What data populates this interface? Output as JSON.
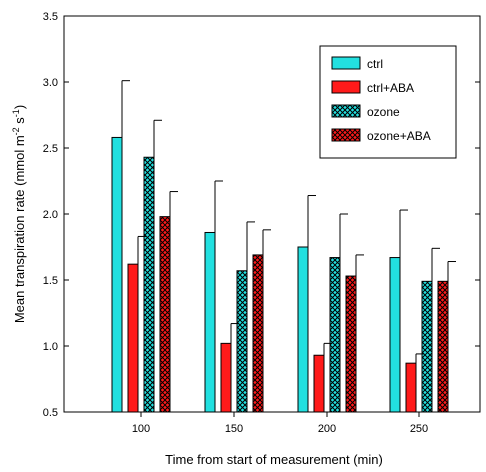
{
  "chart_data": {
    "type": "bar",
    "title": "",
    "xlabel": "Time from start of measurement (min)",
    "ylabel": "Mean transpiration rate (mmol m",
    "ylabel_sup1": "-2",
    "ylabel_mid": " s",
    "ylabel_sup2": "-1",
    "ylabel_end": ")",
    "categories": [
      "100",
      "150",
      "200",
      "250"
    ],
    "ylim": [
      0.5,
      3.5
    ],
    "yticks": [
      "0.5",
      "1.0",
      "1.5",
      "2.0",
      "2.5",
      "3.0",
      "3.5"
    ],
    "grid": false,
    "legend_position": "top-right",
    "series": [
      {
        "name": "ctrl",
        "color": "#22e0e0",
        "pattern": "none",
        "values": [
          2.58,
          1.86,
          1.75,
          1.67
        ],
        "errors": [
          0.43,
          0.39,
          0.39,
          0.36
        ]
      },
      {
        "name": "ctrl+ABA",
        "color": "#ff1a1a",
        "pattern": "none",
        "values": [
          1.62,
          1.02,
          0.93,
          0.87
        ],
        "errors": [
          0.21,
          0.15,
          0.09,
          0.07
        ]
      },
      {
        "name": "ozone",
        "color": "#22e0e0",
        "pattern": "crosshatch",
        "values": [
          2.43,
          1.57,
          1.67,
          1.49
        ],
        "errors": [
          0.28,
          0.37,
          0.33,
          0.25
        ]
      },
      {
        "name": "ozone+ABA",
        "color": "#ff1a1a",
        "pattern": "crosshatch",
        "values": [
          1.98,
          1.69,
          1.53,
          1.49
        ],
        "errors": [
          0.19,
          0.19,
          0.16,
          0.15
        ]
      }
    ]
  }
}
